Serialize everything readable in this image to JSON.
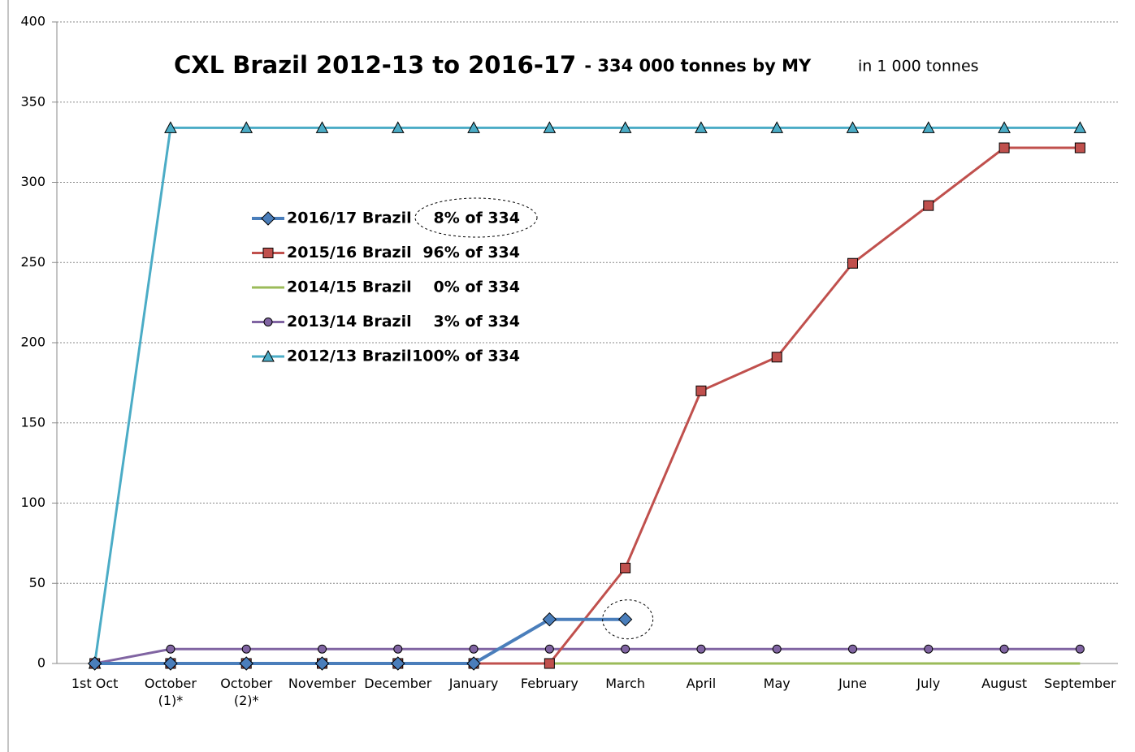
{
  "chart_data": {
    "type": "line",
    "title": "CXL Brazil 2012-13 to 2016-17",
    "subtitle": "- 334 000 tonnes by MY",
    "annotation": "in 1 000 tonnes",
    "categories": [
      "1st Oct",
      "October\n(1)*",
      "October\n(2)*",
      "November",
      "December",
      "January",
      "February",
      "March",
      "April",
      "May",
      "June",
      "July",
      "August",
      "September"
    ],
    "ylim": [
      0,
      400
    ],
    "yticks": [
      0,
      50,
      100,
      150,
      200,
      250,
      300,
      350,
      400
    ],
    "grid": true,
    "series": [
      {
        "name": "2016/17 Brazil",
        "share": "8% of 334",
        "color": "#4a7ebb",
        "marker": "diamond",
        "width": 4,
        "values": [
          0,
          0,
          0,
          0,
          0,
          0,
          27.5,
          27.5,
          null,
          null,
          null,
          null,
          null,
          null
        ]
      },
      {
        "name": "2015/16 Brazil",
        "share": "96% of 334",
        "color": "#c0504d",
        "marker": "square",
        "width": 3,
        "values": [
          0,
          0,
          0,
          0,
          0,
          0,
          0,
          59.5,
          170,
          191,
          249.5,
          285.5,
          321.5,
          321.5
        ]
      },
      {
        "name": "2014/15 Brazil",
        "share": "0% of 334",
        "color": "#9bbb59",
        "marker": "none",
        "width": 3,
        "values": [
          0,
          0,
          0,
          0,
          0,
          0,
          0,
          0,
          0,
          0,
          0,
          0,
          0,
          0
        ]
      },
      {
        "name": "2013/14 Brazil",
        "share": "3% of 334",
        "color": "#8064a2",
        "marker": "circle",
        "width": 3,
        "values": [
          0,
          9,
          9,
          9,
          9,
          9,
          9,
          9,
          9,
          9,
          9,
          9,
          9,
          9
        ]
      },
      {
        "name": "2012/13 Brazil",
        "share": "100% of 334",
        "color": "#4bacc6",
        "marker": "triangle",
        "width": 3,
        "values": [
          0,
          334,
          334,
          334,
          334,
          334,
          334,
          334,
          334,
          334,
          334,
          334,
          334,
          334
        ]
      }
    ]
  }
}
